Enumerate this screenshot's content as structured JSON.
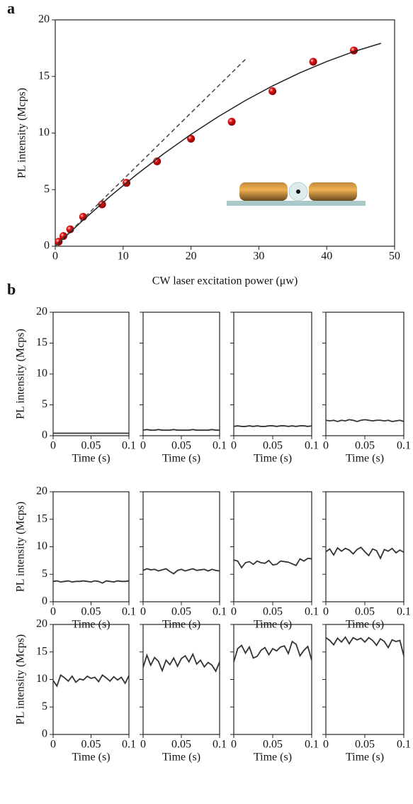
{
  "chart_data": [
    {
      "type": "scatter",
      "panel_label": "a",
      "x_label": "CW  laser excitation power (μw)",
      "y_label": "PL intensity (Mcps)",
      "xlim": [
        0,
        50
      ],
      "xticks": [
        0,
        10,
        20,
        30,
        40,
        50
      ],
      "ylim": [
        0,
        20
      ],
      "yticks": [
        0,
        5,
        10,
        15,
        20
      ],
      "show_ytick_labels": true,
      "series": [
        {
          "style": "sphere",
          "color": "#e01010",
          "x": [
            0.5,
            1.2,
            2.2,
            4.1,
            6.9,
            10.5,
            15,
            20,
            26,
            32,
            38,
            44
          ],
          "values": [
            0.4,
            0.9,
            1.5,
            2.6,
            3.7,
            5.6,
            7.5,
            9.5,
            11,
            13.7,
            16.3,
            17.3
          ]
        },
        {
          "style": "solid",
          "color": "#222222",
          "x": [
            0,
            4,
            8,
            12,
            16,
            20,
            24,
            28,
            32,
            36,
            40,
            44,
            48
          ],
          "values": [
            0,
            2.25,
            4.37,
            6.34,
            8.18,
            9.88,
            11.44,
            12.87,
            14.16,
            15.31,
            16.32,
            17.2,
            17.93
          ]
        },
        {
          "style": "dashed",
          "color": "#444444",
          "x": [
            0,
            28
          ],
          "values": [
            0,
            16.5
          ]
        }
      ]
    },
    {
      "type": "line",
      "panel_label": "b",
      "x_label": "Time (s)",
      "y_label": "PL intensity (Mcps)",
      "xlim": [
        0,
        0.1
      ],
      "xticks": [
        0,
        0.05,
        0.1
      ],
      "ylim": [
        0,
        20
      ],
      "yticks": [
        0,
        5,
        10,
        15,
        20
      ],
      "show_ytick_labels": true,
      "x": [
        0,
        0.005,
        0.01,
        0.015,
        0.02,
        0.025,
        0.03,
        0.035,
        0.04,
        0.045,
        0.05,
        0.055,
        0.06,
        0.065,
        0.07,
        0.075,
        0.08,
        0.085,
        0.09,
        0.095,
        0.1
      ],
      "color": "#333333",
      "values": [
        0.4,
        0.4,
        0.4,
        0.4,
        0.4,
        0.4,
        0.4,
        0.4,
        0.4,
        0.4,
        0.4,
        0.4,
        0.4,
        0.4,
        0.4,
        0.4,
        0.4,
        0.4,
        0.4,
        0.4,
        0.4
      ]
    },
    {
      "type": "line",
      "x_label": "Time (s)",
      "xlim": [
        0,
        0.1
      ],
      "xticks": [
        0,
        0.05,
        0.1
      ],
      "ylim": [
        0,
        20
      ],
      "yticks": [
        0,
        5,
        10,
        15,
        20
      ],
      "show_ytick_labels": false,
      "x": [
        0,
        0.005,
        0.01,
        0.015,
        0.02,
        0.025,
        0.03,
        0.035,
        0.04,
        0.045,
        0.05,
        0.055,
        0.06,
        0.065,
        0.07,
        0.075,
        0.08,
        0.085,
        0.09,
        0.095,
        0.1
      ],
      "color": "#333333",
      "values": [
        0.9,
        1,
        0.9,
        0.9,
        1,
        0.9,
        0.9,
        0.9,
        1,
        0.9,
        0.9,
        0.9,
        0.9,
        1,
        0.9,
        0.9,
        0.9,
        0.9,
        1,
        0.9,
        0.9
      ]
    },
    {
      "type": "line",
      "x_label": "Time (s)",
      "xlim": [
        0,
        0.1
      ],
      "xticks": [
        0,
        0.05,
        0.1
      ],
      "ylim": [
        0,
        20
      ],
      "yticks": [
        0,
        5,
        10,
        15,
        20
      ],
      "show_ytick_labels": false,
      "x": [
        0,
        0.005,
        0.01,
        0.015,
        0.02,
        0.025,
        0.03,
        0.035,
        0.04,
        0.045,
        0.05,
        0.055,
        0.06,
        0.065,
        0.07,
        0.075,
        0.08,
        0.085,
        0.09,
        0.095,
        0.1
      ],
      "color": "#333333",
      "values": [
        1.5,
        1.6,
        1.5,
        1.5,
        1.6,
        1.5,
        1.6,
        1.5,
        1.5,
        1.6,
        1.6,
        1.5,
        1.6,
        1.6,
        1.5,
        1.6,
        1.5,
        1.6,
        1.6,
        1.5,
        1.6
      ]
    },
    {
      "type": "line",
      "x_label": "Time (s)",
      "xlim": [
        0,
        0.1
      ],
      "xticks": [
        0,
        0.05,
        0.1
      ],
      "ylim": [
        0,
        20
      ],
      "yticks": [
        0,
        5,
        10,
        15,
        20
      ],
      "show_ytick_labels": false,
      "x": [
        0,
        0.005,
        0.01,
        0.015,
        0.02,
        0.025,
        0.03,
        0.035,
        0.04,
        0.045,
        0.05,
        0.055,
        0.06,
        0.065,
        0.07,
        0.075,
        0.08,
        0.085,
        0.09,
        0.095,
        0.1
      ],
      "color": "#333333",
      "values": [
        2.5,
        2.4,
        2.5,
        2.3,
        2.5,
        2.4,
        2.6,
        2.5,
        2.3,
        2.5,
        2.6,
        2.5,
        2.4,
        2.5,
        2.5,
        2.4,
        2.5,
        2.3,
        2.4,
        2.5,
        2.3
      ]
    },
    {
      "type": "line",
      "x_label": "Time (s)",
      "y_label": "PL intensity (Mcps)",
      "xlim": [
        0,
        0.1
      ],
      "xticks": [
        0,
        0.05,
        0.1
      ],
      "ylim": [
        0,
        20
      ],
      "yticks": [
        0,
        5,
        10,
        15,
        20
      ],
      "show_ytick_labels": true,
      "x": [
        0,
        0.005,
        0.01,
        0.015,
        0.02,
        0.025,
        0.03,
        0.035,
        0.04,
        0.045,
        0.05,
        0.055,
        0.06,
        0.065,
        0.07,
        0.075,
        0.08,
        0.085,
        0.09,
        0.095,
        0.1
      ],
      "color": "#333333",
      "values": [
        3.7,
        3.8,
        3.6,
        3.7,
        3.8,
        3.6,
        3.7,
        3.7,
        3.8,
        3.7,
        3.6,
        3.8,
        3.7,
        3.4,
        3.8,
        3.7,
        3.6,
        3.8,
        3.7,
        3.7,
        3.8
      ]
    },
    {
      "type": "line",
      "x_label": "Time (s)",
      "xlim": [
        0,
        0.1
      ],
      "xticks": [
        0,
        0.05,
        0.1
      ],
      "ylim": [
        0,
        20
      ],
      "yticks": [
        0,
        5,
        10,
        15,
        20
      ],
      "show_ytick_labels": false,
      "x": [
        0,
        0.005,
        0.01,
        0.015,
        0.02,
        0.025,
        0.03,
        0.035,
        0.04,
        0.045,
        0.05,
        0.055,
        0.06,
        0.065,
        0.07,
        0.075,
        0.08,
        0.085,
        0.09,
        0.095,
        0.1
      ],
      "color": "#333333",
      "values": [
        5.7,
        6,
        5.8,
        5.9,
        5.6,
        5.8,
        6,
        5.5,
        5.1,
        5.7,
        5.9,
        5.6,
        5.8,
        6,
        5.7,
        5.8,
        5.9,
        5.6,
        5.9,
        5.7,
        5.6
      ]
    },
    {
      "type": "line",
      "x_label": "Time (s)",
      "xlim": [
        0,
        0.1
      ],
      "xticks": [
        0,
        0.05,
        0.1
      ],
      "ylim": [
        0,
        20
      ],
      "yticks": [
        0,
        5,
        10,
        15,
        20
      ],
      "show_ytick_labels": false,
      "x": [
        0,
        0.005,
        0.01,
        0.015,
        0.02,
        0.025,
        0.03,
        0.035,
        0.04,
        0.045,
        0.05,
        0.055,
        0.06,
        0.065,
        0.07,
        0.075,
        0.08,
        0.085,
        0.09,
        0.095,
        0.1
      ],
      "color": "#333333",
      "values": [
        7.6,
        7.4,
        6.2,
        7.1,
        7.3,
        6.8,
        7.4,
        7.1,
        7,
        7.5,
        6.7,
        6.8,
        7.4,
        7.3,
        7.2,
        6.9,
        6.6,
        7.8,
        7.4,
        7.9,
        7.8
      ]
    },
    {
      "type": "line",
      "x_label": "Time (s)",
      "xlim": [
        0,
        0.1
      ],
      "xticks": [
        0,
        0.05,
        0.1
      ],
      "ylim": [
        0,
        20
      ],
      "yticks": [
        0,
        5,
        10,
        15,
        20
      ],
      "show_ytick_labels": false,
      "x": [
        0,
        0.005,
        0.01,
        0.015,
        0.02,
        0.025,
        0.03,
        0.035,
        0.04,
        0.045,
        0.05,
        0.055,
        0.06,
        0.065,
        0.07,
        0.075,
        0.08,
        0.085,
        0.09,
        0.095,
        0.1
      ],
      "color": "#333333",
      "values": [
        9.1,
        9.6,
        8.5,
        9.8,
        9.2,
        9.7,
        9.4,
        8.7,
        9.5,
        9.9,
        9.1,
        8.4,
        9.6,
        9.3,
        7.9,
        9.5,
        9.2,
        9.7,
        8.9,
        9.4,
        9
      ]
    },
    {
      "type": "line",
      "x_label": "Time (s)",
      "y_label": "PL intensity (Mcps)",
      "xlim": [
        0,
        0.1
      ],
      "xticks": [
        0,
        0.05,
        0.1
      ],
      "ylim": [
        0,
        20
      ],
      "yticks": [
        0,
        5,
        10,
        15,
        20
      ],
      "show_ytick_labels": true,
      "x": [
        0,
        0.005,
        0.01,
        0.015,
        0.02,
        0.025,
        0.03,
        0.035,
        0.04,
        0.045,
        0.05,
        0.055,
        0.06,
        0.065,
        0.07,
        0.075,
        0.08,
        0.085,
        0.09,
        0.095,
        0.1
      ],
      "color": "#333333",
      "values": [
        9.8,
        8.8,
        10.8,
        10.3,
        9.7,
        10.6,
        9.5,
        10.1,
        9.9,
        10.6,
        10.2,
        10.4,
        9.6,
        10.8,
        10.3,
        9.7,
        10.5,
        9.9,
        10.4,
        9.3,
        10.7
      ]
    },
    {
      "type": "line",
      "x_label": "Time (s)",
      "xlim": [
        0,
        0.1
      ],
      "xticks": [
        0,
        0.05,
        0.1
      ],
      "ylim": [
        0,
        20
      ],
      "yticks": [
        0,
        5,
        10,
        15,
        20
      ],
      "show_ytick_labels": false,
      "x": [
        0,
        0.005,
        0.01,
        0.015,
        0.02,
        0.025,
        0.03,
        0.035,
        0.04,
        0.045,
        0.05,
        0.055,
        0.06,
        0.065,
        0.07,
        0.075,
        0.08,
        0.085,
        0.09,
        0.095,
        0.1
      ],
      "color": "#333333",
      "values": [
        12.2,
        14.4,
        12.6,
        14,
        13.3,
        11.6,
        13.5,
        12.7,
        13.9,
        12.4,
        13.8,
        14.3,
        13.2,
        14.6,
        12.8,
        13.5,
        12.3,
        13.1,
        12.6,
        11.5,
        13.2
      ]
    },
    {
      "type": "line",
      "x_label": "Time (s)",
      "xlim": [
        0,
        0.1
      ],
      "xticks": [
        0,
        0.05,
        0.1
      ],
      "ylim": [
        0,
        20
      ],
      "yticks": [
        0,
        5,
        10,
        15,
        20
      ],
      "show_ytick_labels": false,
      "x": [
        0,
        0.005,
        0.01,
        0.015,
        0.02,
        0.025,
        0.03,
        0.035,
        0.04,
        0.045,
        0.05,
        0.055,
        0.06,
        0.065,
        0.07,
        0.075,
        0.08,
        0.085,
        0.09,
        0.095,
        0.1
      ],
      "color": "#333333",
      "values": [
        13.2,
        15.6,
        16.2,
        14.8,
        15.9,
        13.9,
        14.2,
        15.3,
        15.8,
        14.5,
        15.6,
        15.2,
        15.9,
        16.1,
        14.7,
        16.9,
        16.4,
        14.3,
        15.3,
        16,
        13.5
      ]
    },
    {
      "type": "line",
      "x_label": "Time (s)",
      "xlim": [
        0,
        0.1
      ],
      "xticks": [
        0,
        0.05,
        0.1
      ],
      "ylim": [
        0,
        20
      ],
      "yticks": [
        0,
        5,
        10,
        15,
        20
      ],
      "show_ytick_labels": false,
      "x": [
        0,
        0.005,
        0.01,
        0.015,
        0.02,
        0.025,
        0.03,
        0.035,
        0.04,
        0.045,
        0.05,
        0.055,
        0.06,
        0.065,
        0.07,
        0.075,
        0.08,
        0.085,
        0.09,
        0.095,
        0.1
      ],
      "color": "#333333",
      "values": [
        17.6,
        17.1,
        16.3,
        17.5,
        16.8,
        17.7,
        16.5,
        17.6,
        17.2,
        17.5,
        16.8,
        17.6,
        17.1,
        16.2,
        17.4,
        16.9,
        15.8,
        17.2,
        16.9,
        17.1,
        14.3
      ]
    }
  ]
}
